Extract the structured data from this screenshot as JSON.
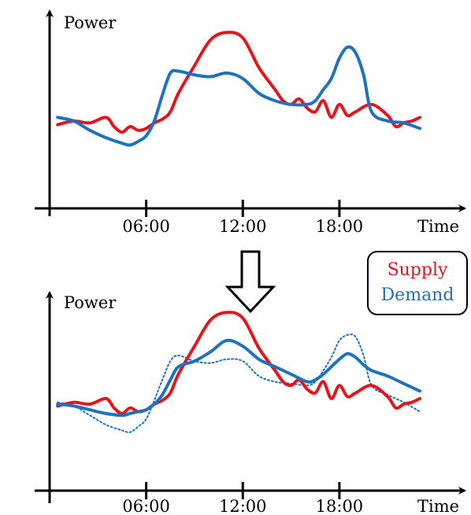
{
  "colors": {
    "supply": "#e8141c",
    "demand": "#1f72c0",
    "axis": "#000000"
  },
  "legend": [
    {
      "label": "Supply",
      "color": "#e8141c"
    },
    {
      "label": "Demand",
      "color": "#1f72c0"
    }
  ],
  "arrow_icon": "down-arrow-icon",
  "chart_data": [
    {
      "type": "line",
      "ylabel": "Power",
      "xlabel": "Time",
      "x_ticks": [
        "06:00",
        "12:00",
        "18:00"
      ],
      "xlim": [
        0,
        25
      ],
      "ylim": [
        0,
        100
      ],
      "series": [
        {
          "name": "Supply",
          "style": "solid",
          "color": "#e8141c",
          "x": [
            0.5,
            1.5,
            2.5,
            3.5,
            4.0,
            4.5,
            5.0,
            5.5,
            6.0,
            6.5,
            7.0,
            7.5,
            8.0,
            9.0,
            10.0,
            11.0,
            12.0,
            13.0,
            14.0,
            14.5,
            15.0,
            15.5,
            16.0,
            16.5,
            17.0,
            17.5,
            18.0,
            18.5,
            19.0,
            20.0,
            21.0,
            21.5,
            22.0,
            22.5,
            23.0
          ],
          "y": [
            41,
            43,
            42,
            45,
            40,
            37,
            40,
            38,
            39,
            42,
            44,
            48,
            58,
            73,
            87,
            91,
            88,
            72,
            60,
            54,
            52,
            55,
            50,
            48,
            54,
            45,
            52,
            46,
            48,
            52,
            46,
            40,
            42,
            43,
            45
          ]
        },
        {
          "name": "Demand",
          "style": "solid",
          "color": "#1f72c0",
          "x": [
            0.5,
            1.5,
            2.5,
            3.5,
            4.5,
            5.0,
            5.5,
            6.0,
            6.5,
            7.0,
            7.5,
            8.0,
            9.0,
            10.0,
            11.0,
            12.0,
            13.0,
            14.0,
            15.0,
            16.0,
            16.5,
            17.0,
            17.5,
            18.0,
            18.5,
            19.0,
            19.5,
            20.0,
            21.0,
            22.0,
            23.0
          ],
          "y": [
            45,
            43,
            38,
            34,
            31,
            30,
            32,
            35,
            43,
            57,
            69,
            70,
            68,
            67,
            69,
            66,
            58,
            54,
            52,
            52,
            54,
            60,
            66,
            77,
            83,
            80,
            68,
            48,
            43,
            42,
            39
          ]
        }
      ]
    },
    {
      "type": "line",
      "ylabel": "Power",
      "xlabel": "Time",
      "x_ticks": [
        "06:00",
        "12:00",
        "18:00"
      ],
      "xlim": [
        0,
        25
      ],
      "ylim": [
        0,
        100
      ],
      "series": [
        {
          "style": "dotted",
          "color": "#1f72c0",
          "x": [
            0.5,
            1.5,
            2.5,
            3.5,
            4.5,
            5.0,
            5.5,
            6.0,
            6.5,
            7.0,
            7.5,
            8.0,
            9.0,
            10.0,
            11.0,
            12.0,
            13.0,
            14.0,
            15.0,
            16.0,
            16.5,
            17.0,
            17.5,
            18.0,
            18.5,
            19.0,
            19.5,
            20.0,
            21.0,
            22.0,
            23.0
          ],
          "y": [
            43,
            41,
            36,
            31,
            28,
            27,
            30,
            34,
            44,
            55,
            65,
            68,
            65,
            64,
            66,
            65,
            57,
            54,
            53,
            52,
            54,
            60,
            67,
            76,
            79,
            78,
            68,
            52,
            47,
            43,
            38
          ]
        },
        {
          "name": "Supply",
          "style": "solid",
          "color": "#e8141c",
          "x": [
            0.5,
            1.5,
            2.5,
            3.5,
            4.0,
            4.5,
            5.0,
            5.5,
            6.0,
            6.5,
            7.0,
            7.5,
            8.0,
            9.0,
            10.0,
            11.0,
            12.0,
            13.0,
            14.0,
            14.5,
            15.0,
            15.5,
            16.0,
            16.5,
            17.0,
            17.5,
            18.0,
            18.5,
            19.0,
            20.0,
            21.0,
            21.5,
            22.0,
            22.5,
            23.0
          ],
          "y": [
            41,
            43,
            42,
            45,
            40,
            37,
            40,
            38,
            39,
            42,
            44,
            48,
            58,
            73,
            87,
            91,
            88,
            72,
            60,
            54,
            52,
            55,
            50,
            48,
            54,
            45,
            52,
            46,
            48,
            52,
            46,
            40,
            42,
            43,
            45
          ]
        },
        {
          "name": "Demand",
          "style": "solid",
          "color": "#1f72c0",
          "x": [
            0.5,
            1.5,
            2.5,
            3.5,
            4.5,
            5.0,
            5.5,
            6.0,
            6.5,
            7.0,
            7.5,
            8.0,
            9.0,
            10.0,
            11.0,
            12.0,
            13.0,
            14.0,
            15.0,
            16.0,
            16.5,
            17.0,
            17.5,
            18.0,
            18.5,
            19.0,
            19.5,
            20.0,
            21.0,
            22.0,
            23.0
          ],
          "y": [
            42,
            41,
            39,
            37,
            36,
            37,
            38,
            39,
            42,
            47,
            55,
            62,
            65,
            70,
            76,
            73,
            66,
            62,
            58,
            54,
            55,
            58,
            62,
            66,
            69,
            67,
            63,
            60,
            57,
            53,
            49
          ]
        }
      ]
    }
  ]
}
